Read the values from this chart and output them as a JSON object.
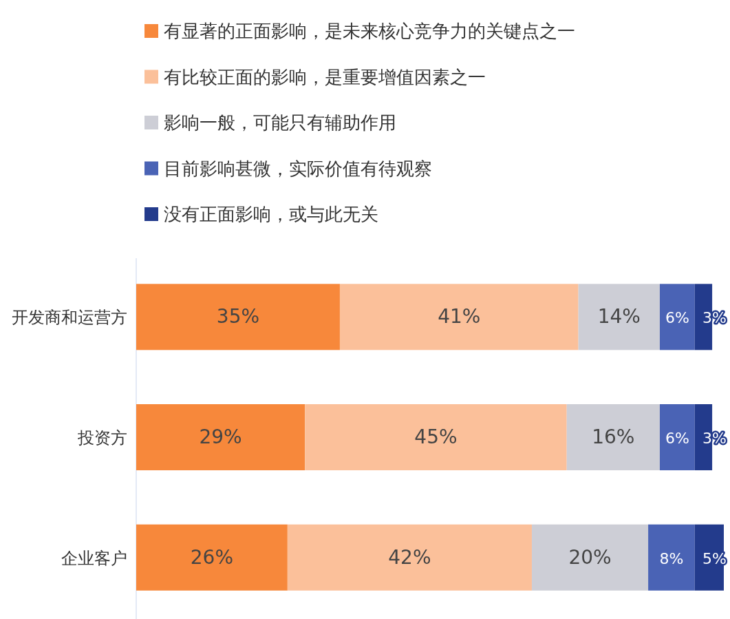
{
  "chart_data": {
    "type": "bar",
    "orientation": "horizontal",
    "stacked": true,
    "legend": "top",
    "tick_labels": "y",
    "categories": [
      "开发商和运营方",
      "投资方",
      "企业客户"
    ],
    "series": [
      {
        "name": "有显著的正面影响，是未来核心竞争力的关键点之一",
        "color": "#f7883b",
        "values": [
          35,
          29,
          26
        ],
        "value_labels": [
          "35%",
          "29%",
          "26%"
        ]
      },
      {
        "name": "有比较正面的影响，是重要增值因素之一",
        "color": "#fbc09a",
        "values": [
          41,
          45,
          42
        ],
        "value_labels": [
          "41%",
          "45%",
          "42%"
        ]
      },
      {
        "name": "影响一般，可能只有辅助作用",
        "color": "#cdced6",
        "values": [
          14,
          16,
          20
        ],
        "value_labels": [
          "14%",
          "16%",
          "20%"
        ]
      },
      {
        "name": "目前影响甚微，实际价值有待观察",
        "color": "#4a63b5",
        "values": [
          6,
          6,
          8
        ],
        "value_labels": [
          "6%",
          "6%",
          "8%"
        ]
      },
      {
        "name": "没有正面影响，或与此无关",
        "color": "#233b8c",
        "values": [
          3,
          3,
          5
        ],
        "value_labels": [
          "3%",
          "3%",
          "5%"
        ]
      }
    ]
  }
}
